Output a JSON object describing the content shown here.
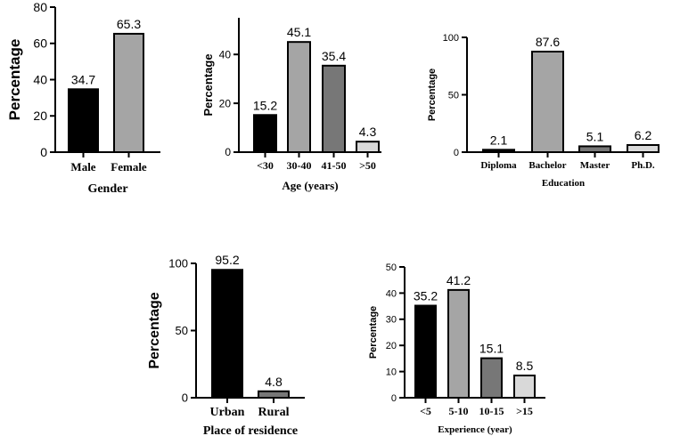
{
  "chart_data": [
    {
      "type": "bar",
      "categories": [
        "Male",
        "Female"
      ],
      "values": [
        34.7,
        65.3
      ],
      "colors": [
        "#000000",
        "#a5a5a5"
      ],
      "xlabel": "Gender",
      "ylabel": "Percentage",
      "ylim": [
        0,
        80
      ],
      "yticks": [
        0,
        20,
        40,
        60,
        80
      ],
      "grid": false,
      "legend": false
    },
    {
      "type": "bar",
      "categories": [
        "<30",
        "30-40",
        "41-50",
        ">50"
      ],
      "values": [
        15.2,
        45.1,
        35.4,
        4.3
      ],
      "colors": [
        "#000000",
        "#a5a5a5",
        "#777777",
        "#d9d9d9"
      ],
      "xlabel": "Age (years)",
      "ylabel": "Percentage",
      "ylim": [
        0,
        55
      ],
      "yticks": [
        0,
        20,
        40
      ],
      "grid": false,
      "legend": false
    },
    {
      "type": "bar",
      "categories": [
        "Diploma",
        "Bachelor",
        "Master",
        "Ph.D."
      ],
      "values": [
        2.1,
        87.6,
        5.1,
        6.2
      ],
      "colors": [
        "#000000",
        "#a5a5a5",
        "#777777",
        "#d9d9d9"
      ],
      "xlabel": "Education",
      "ylabel": "Percentage",
      "ylim": [
        0,
        100
      ],
      "yticks": [
        0,
        50,
        100
      ],
      "grid": false,
      "legend": false
    },
    {
      "type": "bar",
      "categories": [
        "Urban",
        "Rural"
      ],
      "values": [
        95.2,
        4.8
      ],
      "colors": [
        "#000000",
        "#777777"
      ],
      "xlabel": "Place of residence",
      "ylabel": "Percentage",
      "ylim": [
        0,
        100
      ],
      "yticks": [
        0,
        50,
        100
      ],
      "grid": false,
      "legend": false
    },
    {
      "type": "bar",
      "categories": [
        "<5",
        "5-10",
        "10-15",
        ">15"
      ],
      "values": [
        35.2,
        41.2,
        15.1,
        8.5
      ],
      "colors": [
        "#000000",
        "#a5a5a5",
        "#777777",
        "#d9d9d9"
      ],
      "xlabel": "Experience (year)",
      "ylabel": "Percentage",
      "ylim": [
        0,
        50
      ],
      "yticks": [
        0,
        10,
        20,
        30,
        40,
        50
      ],
      "grid": false,
      "legend": false
    }
  ]
}
